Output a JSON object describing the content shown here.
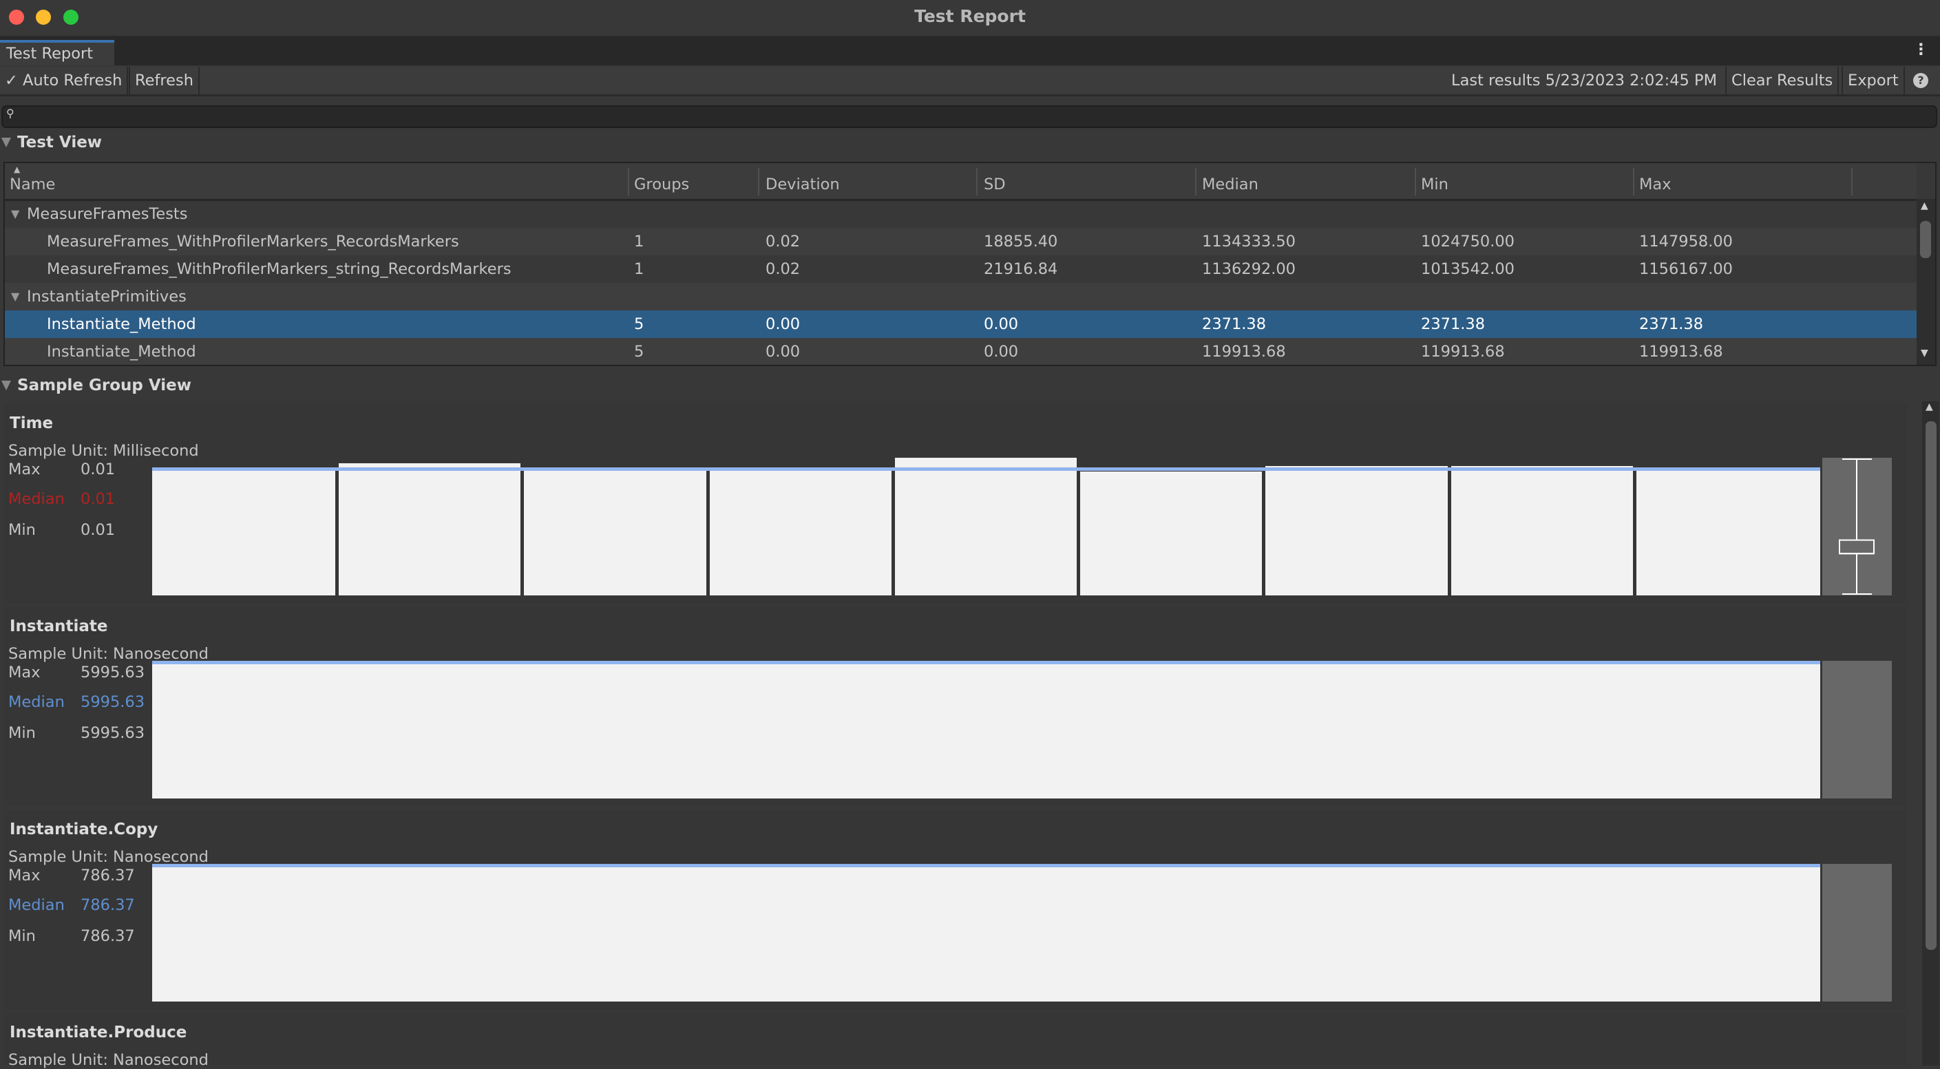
{
  "window": {
    "title": "Test Report"
  },
  "tab": {
    "label": "Test Report"
  },
  "toolbar": {
    "auto_refresh_label": "Auto Refresh",
    "auto_refresh_checked": true,
    "refresh_label": "Refresh",
    "last_results": "Last results 5/23/2023 2:02:45 PM",
    "clear_results_label": "Clear Results",
    "export_label": "Export"
  },
  "search": {
    "value": "",
    "placeholder": ""
  },
  "test_view": {
    "title": "Test View",
    "columns": [
      "Name",
      "Groups",
      "Deviation",
      "SD",
      "Median",
      "Min",
      "Max"
    ],
    "rows": [
      {
        "type": "group",
        "name": "MeasureFramesTests"
      },
      {
        "type": "test",
        "name": "MeasureFrames_WithProfilerMarkers_RecordsMarkers",
        "groups": "1",
        "deviation": "0.02",
        "sd": "18855.40",
        "median": "1134333.50",
        "min": "1024750.00",
        "max": "1147958.00"
      },
      {
        "type": "test",
        "name": "MeasureFrames_WithProfilerMarkers_string_RecordsMarkers",
        "groups": "1",
        "deviation": "0.02",
        "sd": "21916.84",
        "median": "1136292.00",
        "min": "1013542.00",
        "max": "1156167.00"
      },
      {
        "type": "group",
        "name": "InstantiatePrimitives"
      },
      {
        "type": "test",
        "selected": true,
        "name": "Instantiate_Method",
        "groups": "5",
        "deviation": "0.00",
        "sd": "0.00",
        "median": "2371.38",
        "min": "2371.38",
        "max": "2371.38"
      },
      {
        "type": "test",
        "name": "Instantiate_Method",
        "groups": "5",
        "deviation": "0.00",
        "sd": "0.00",
        "median": "119913.68",
        "min": "119913.68",
        "max": "119913.68"
      }
    ]
  },
  "sample_group_view": {
    "title": "Sample Group View",
    "labels": {
      "max": "Max",
      "median": "Median",
      "min": "Min"
    },
    "groups": [
      {
        "name": "Time",
        "unit": "Sample Unit: Millisecond",
        "max": "0.01",
        "median": "0.01",
        "min": "0.01",
        "median_color": "#b22222",
        "values": [
          0.0093,
          0.0096,
          0.0093,
          0.0093,
          0.01,
          0.009,
          0.0094,
          0.0094,
          0.0093
        ],
        "boxplot": true
      },
      {
        "name": "Instantiate",
        "unit": "Sample Unit: Nanosecond",
        "max": "5995.63",
        "median": "5995.63",
        "min": "5995.63",
        "median_color": "#5f8fd0",
        "values": [
          5995.63
        ],
        "boxplot": false
      },
      {
        "name": "Instantiate.Copy",
        "unit": "Sample Unit: Nanosecond",
        "max": "786.37",
        "median": "786.37",
        "min": "786.37",
        "median_color": "#5f8fd0",
        "values": [
          786.37
        ],
        "boxplot": false
      },
      {
        "name": "Instantiate.Produce",
        "unit": "Sample Unit: Nanosecond"
      }
    ]
  },
  "colors": {
    "selection": "#2c5d87",
    "median_line": "#8fb4ee",
    "accent_tab": "#3a72b0"
  }
}
